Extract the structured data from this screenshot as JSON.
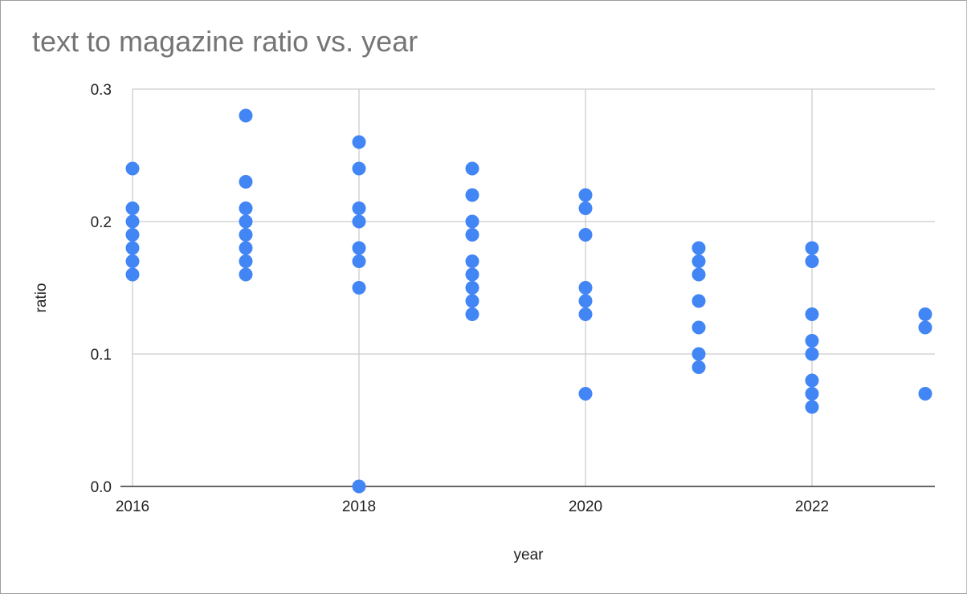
{
  "chart_data": {
    "type": "scatter",
    "title": "text to magazine ratio vs. year",
    "xlabel": "year",
    "ylabel": "ratio",
    "xlim": [
      2016,
      2023
    ],
    "ylim": [
      0,
      0.3
    ],
    "x_ticks": [
      "2016",
      "2018",
      "2020",
      "2022"
    ],
    "y_ticks": [
      "0.0",
      "0.1",
      "0.2",
      "0.3"
    ],
    "grid": true,
    "legend": "none",
    "color": "#4285f4",
    "series": [
      {
        "points": [
          [
            2016,
            0.24
          ],
          [
            2016,
            0.21
          ],
          [
            2016,
            0.2
          ],
          [
            2016,
            0.19
          ],
          [
            2016,
            0.18
          ],
          [
            2016,
            0.17
          ],
          [
            2016,
            0.16
          ],
          [
            2017,
            0.28
          ],
          [
            2017,
            0.23
          ],
          [
            2017,
            0.21
          ],
          [
            2017,
            0.2
          ],
          [
            2017,
            0.19
          ],
          [
            2017,
            0.18
          ],
          [
            2017,
            0.17
          ],
          [
            2017,
            0.16
          ],
          [
            2018,
            0.26
          ],
          [
            2018,
            0.24
          ],
          [
            2018,
            0.21
          ],
          [
            2018,
            0.2
          ],
          [
            2018,
            0.18
          ],
          [
            2018,
            0.17
          ],
          [
            2018,
            0.15
          ],
          [
            2018,
            0.0
          ],
          [
            2019,
            0.24
          ],
          [
            2019,
            0.22
          ],
          [
            2019,
            0.2
          ],
          [
            2019,
            0.19
          ],
          [
            2019,
            0.17
          ],
          [
            2019,
            0.16
          ],
          [
            2019,
            0.15
          ],
          [
            2019,
            0.14
          ],
          [
            2019,
            0.13
          ],
          [
            2020,
            0.22
          ],
          [
            2020,
            0.21
          ],
          [
            2020,
            0.19
          ],
          [
            2020,
            0.15
          ],
          [
            2020,
            0.14
          ],
          [
            2020,
            0.13
          ],
          [
            2020,
            0.07
          ],
          [
            2021,
            0.18
          ],
          [
            2021,
            0.17
          ],
          [
            2021,
            0.16
          ],
          [
            2021,
            0.14
          ],
          [
            2021,
            0.12
          ],
          [
            2021,
            0.1
          ],
          [
            2021,
            0.09
          ],
          [
            2022,
            0.18
          ],
          [
            2022,
            0.17
          ],
          [
            2022,
            0.13
          ],
          [
            2022,
            0.11
          ],
          [
            2022,
            0.1
          ],
          [
            2022,
            0.08
          ],
          [
            2022,
            0.07
          ],
          [
            2022,
            0.06
          ],
          [
            2023,
            0.13
          ],
          [
            2023,
            0.12
          ],
          [
            2023,
            0.07
          ]
        ]
      }
    ]
  }
}
